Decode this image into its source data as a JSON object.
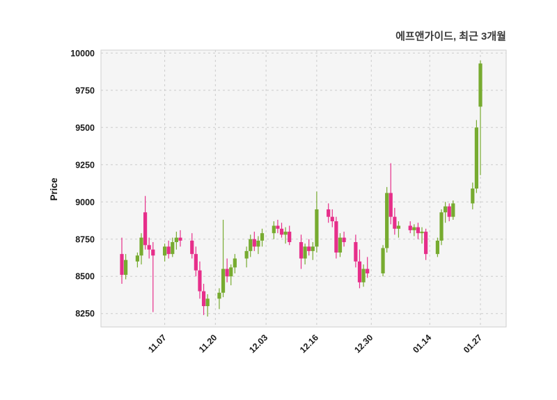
{
  "header": {
    "title": "에프앤가이드, 최근 3개월"
  },
  "chart_data": {
    "type": "candlestick",
    "title": "에프앤가이드, 최근 3개월",
    "ylabel": "Price",
    "ylim": [
      8160,
      10020
    ],
    "yticks": [
      8250,
      8500,
      8750,
      9000,
      9250,
      9500,
      9750,
      10000
    ],
    "xticks": [
      "11.07",
      "11.20",
      "12.03",
      "12.16",
      "12.30",
      "01.14",
      "01.27"
    ],
    "grid": "dashed",
    "legend": "none",
    "colors": {
      "up": "#77ab30",
      "down": "#e62e8a",
      "grid": "#cccccc",
      "plot_bg": "#f5f5f5",
      "plot_border": "#cfcfcf"
    },
    "candles_format": [
      "date",
      "open",
      "high",
      "low",
      "close"
    ],
    "candles": [
      [
        "10.27",
        8650,
        8760,
        8450,
        8510
      ],
      [
        "10.28",
        8510,
        8650,
        8480,
        8610
      ],
      [
        "10.31",
        8600,
        8660,
        8560,
        8640
      ],
      [
        "11.01",
        8640,
        8790,
        8580,
        8760
      ],
      [
        "11.02",
        8930,
        9040,
        8680,
        8710
      ],
      [
        "11.03",
        8710,
        8760,
        8620,
        8680
      ],
      [
        "11.04",
        8680,
        8730,
        8260,
        8640
      ],
      [
        "11.07",
        8640,
        8720,
        8600,
        8700
      ],
      [
        "11.08",
        8700,
        8740,
        8620,
        8650
      ],
      [
        "11.09",
        8650,
        8760,
        8630,
        8730
      ],
      [
        "11.10",
        8730,
        8800,
        8680,
        8760
      ],
      [
        "11.11",
        8760,
        8810,
        8700,
        8740
      ],
      [
        "11.14",
        8740,
        8790,
        8620,
        8650
      ],
      [
        "11.15",
        8650,
        8700,
        8500,
        8540
      ],
      [
        "11.16",
        8540,
        8600,
        8350,
        8400
      ],
      [
        "11.17",
        8400,
        8450,
        8240,
        8300
      ],
      [
        "11.18",
        8300,
        8380,
        8230,
        8350
      ],
      [
        "11.21",
        8350,
        8420,
        8280,
        8390
      ],
      [
        "11.22",
        8390,
        8880,
        8360,
        8550
      ],
      [
        "11.23",
        8550,
        8620,
        8460,
        8500
      ],
      [
        "11.24",
        8500,
        8580,
        8440,
        8560
      ],
      [
        "11.25",
        8560,
        8650,
        8520,
        8620
      ],
      [
        "11.28",
        8620,
        8700,
        8560,
        8670
      ],
      [
        "11.29",
        8670,
        8780,
        8630,
        8750
      ],
      [
        "11.30",
        8750,
        8800,
        8670,
        8700
      ],
      [
        "12.01",
        8700,
        8770,
        8650,
        8740
      ],
      [
        "12.02",
        8740,
        8820,
        8700,
        8790
      ],
      [
        "12.05",
        8790,
        8870,
        8750,
        8840
      ],
      [
        "12.06",
        8840,
        8880,
        8790,
        8820
      ],
      [
        "12.07",
        8820,
        8860,
        8760,
        8780
      ],
      [
        "12.08",
        8780,
        8830,
        8720,
        8800
      ],
      [
        "12.09",
        8800,
        8840,
        8710,
        8730
      ],
      [
        "12.12",
        8730,
        8780,
        8550,
        8620
      ],
      [
        "12.13",
        8620,
        8720,
        8580,
        8700
      ],
      [
        "12.14",
        8700,
        8750,
        8640,
        8670
      ],
      [
        "12.15",
        8670,
        8730,
        8610,
        8700
      ],
      [
        "12.16",
        8700,
        9070,
        8660,
        8950
      ],
      [
        "12.19",
        8950,
        8990,
        8860,
        8900
      ],
      [
        "12.20",
        8900,
        8950,
        8830,
        8870
      ],
      [
        "12.21",
        8870,
        8900,
        8620,
        8660
      ],
      [
        "12.22",
        8660,
        8790,
        8630,
        8760
      ],
      [
        "12.23",
        8760,
        8800,
        8700,
        8730
      ],
      [
        "12.26",
        8730,
        8780,
        8560,
        8600
      ],
      [
        "12.27",
        8600,
        8680,
        8420,
        8460
      ],
      [
        "12.28",
        8460,
        8580,
        8430,
        8550
      ],
      [
        "12.29",
        8550,
        8630,
        8490,
        8520
      ],
      [
        "01.02",
        8520,
        8710,
        8500,
        8690
      ],
      [
        "01.03",
        8690,
        9100,
        8660,
        9060
      ],
      [
        "01.04",
        9060,
        9260,
        8850,
        8900
      ],
      [
        "01.05",
        8900,
        8960,
        8780,
        8820
      ],
      [
        "01.06",
        8820,
        8870,
        8760,
        8840
      ],
      [
        "01.09",
        8840,
        8870,
        8790,
        8810
      ],
      [
        "01.10",
        8810,
        8850,
        8770,
        8830
      ],
      [
        "01.11",
        8830,
        8860,
        8750,
        8790
      ],
      [
        "01.12",
        8790,
        8830,
        8720,
        8800
      ],
      [
        "01.13",
        8800,
        8820,
        8610,
        8650
      ],
      [
        "01.16",
        8650,
        8760,
        8630,
        8740
      ],
      [
        "01.17",
        8740,
        8950,
        8710,
        8930
      ],
      [
        "01.18",
        8930,
        9000,
        8860,
        8970
      ],
      [
        "01.19",
        8970,
        8990,
        8870,
        8900
      ],
      [
        "01.20",
        8900,
        9010,
        8880,
        8990
      ],
      [
        "01.25",
        8990,
        9130,
        8950,
        9090
      ],
      [
        "01.26",
        9090,
        9550,
        9060,
        9500
      ],
      [
        "01.27",
        9640,
        9950,
        9180,
        9930
      ]
    ]
  }
}
